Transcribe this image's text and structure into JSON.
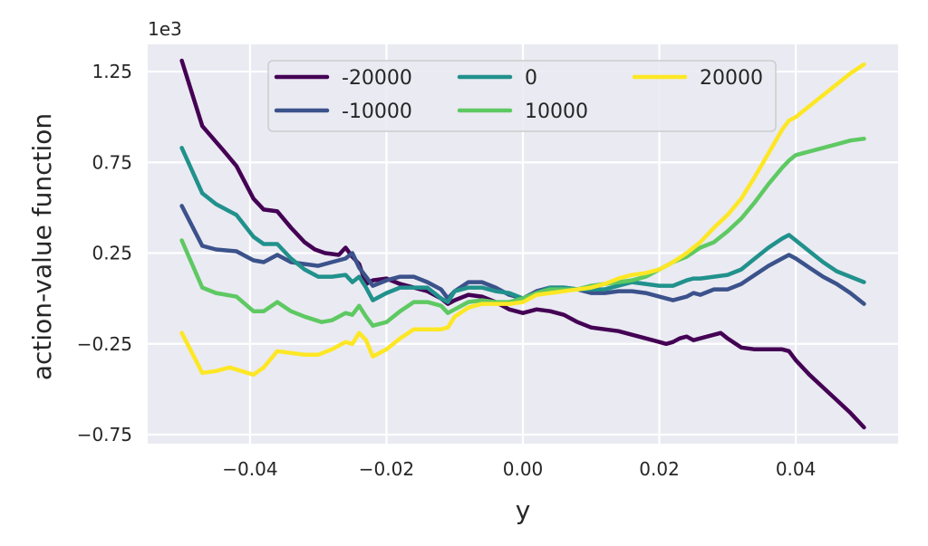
{
  "chart_data": {
    "type": "line",
    "xlabel": "y",
    "ylabel": "action-value function",
    "y_offset_label": "1e3",
    "xlim": [
      -0.055,
      0.055
    ],
    "ylim": [
      -0.8,
      1.4
    ],
    "x_ticks": [
      -0.04,
      -0.02,
      0.0,
      0.02,
      0.04
    ],
    "x_tick_labels": [
      "−0.04",
      "−0.02",
      "0.00",
      "0.02",
      "0.04"
    ],
    "y_ticks": [
      -0.75,
      -0.25,
      0.25,
      0.75,
      1.25
    ],
    "y_tick_labels": [
      "−0.75",
      "−0.25",
      "0.25",
      "0.75",
      "1.25"
    ],
    "grid": true,
    "legend_position": "upper-center",
    "background": "#eaeaf2",
    "series": [
      {
        "name": "-20000",
        "color": "#440154",
        "x": [
          -0.05,
          -0.047,
          -0.044,
          -0.042,
          -0.0395,
          -0.038,
          -0.036,
          -0.034,
          -0.032,
          -0.0305,
          -0.029,
          -0.027,
          -0.026,
          -0.025,
          -0.024,
          -0.023,
          -0.022,
          -0.02,
          -0.018,
          -0.016,
          -0.014,
          -0.012,
          -0.011,
          -0.01,
          -0.008,
          -0.006,
          -0.004,
          -0.002,
          0.0,
          0.002,
          0.004,
          0.006,
          0.008,
          0.01,
          0.012,
          0.014,
          0.016,
          0.018,
          0.02,
          0.021,
          0.022,
          0.023,
          0.024,
          0.025,
          0.026,
          0.028,
          0.029,
          0.03,
          0.032,
          0.034,
          0.036,
          0.038,
          0.039,
          0.04,
          0.042,
          0.044,
          0.046,
          0.048,
          0.05
        ],
        "values": [
          1.31,
          0.95,
          0.82,
          0.73,
          0.55,
          0.49,
          0.48,
          0.39,
          0.31,
          0.27,
          0.25,
          0.24,
          0.28,
          0.23,
          0.19,
          0.08,
          0.1,
          0.11,
          0.08,
          0.06,
          0.04,
          0.0,
          -0.03,
          -0.01,
          0.02,
          0.01,
          -0.02,
          -0.06,
          -0.08,
          -0.06,
          -0.07,
          -0.09,
          -0.13,
          -0.16,
          -0.17,
          -0.18,
          -0.2,
          -0.22,
          -0.24,
          -0.25,
          -0.24,
          -0.22,
          -0.21,
          -0.23,
          -0.22,
          -0.2,
          -0.19,
          -0.22,
          -0.27,
          -0.28,
          -0.28,
          -0.28,
          -0.29,
          -0.34,
          -0.42,
          -0.49,
          -0.56,
          -0.63,
          -0.71
        ]
      },
      {
        "name": "-10000",
        "color": "#3b528b",
        "x": [
          -0.05,
          -0.047,
          -0.045,
          -0.042,
          -0.0395,
          -0.038,
          -0.036,
          -0.034,
          -0.032,
          -0.03,
          -0.028,
          -0.026,
          -0.025,
          -0.024,
          -0.023,
          -0.022,
          -0.02,
          -0.018,
          -0.016,
          -0.014,
          -0.012,
          -0.011,
          -0.01,
          -0.008,
          -0.006,
          -0.004,
          -0.002,
          0.0,
          0.002,
          0.004,
          0.006,
          0.008,
          0.01,
          0.012,
          0.014,
          0.016,
          0.018,
          0.02,
          0.022,
          0.024,
          0.025,
          0.026,
          0.028,
          0.03,
          0.032,
          0.034,
          0.036,
          0.038,
          0.039,
          0.04,
          0.042,
          0.044,
          0.046,
          0.048,
          0.05
        ],
        "values": [
          0.51,
          0.29,
          0.27,
          0.26,
          0.21,
          0.2,
          0.24,
          0.2,
          0.19,
          0.18,
          0.2,
          0.22,
          0.25,
          0.17,
          0.12,
          0.07,
          0.1,
          0.12,
          0.12,
          0.09,
          0.05,
          0.0,
          0.04,
          0.09,
          0.09,
          0.06,
          0.02,
          0.0,
          0.04,
          0.06,
          0.06,
          0.05,
          0.03,
          0.03,
          0.04,
          0.04,
          0.03,
          0.01,
          -0.01,
          0.01,
          0.03,
          0.02,
          0.05,
          0.05,
          0.08,
          0.13,
          0.18,
          0.22,
          0.24,
          0.22,
          0.17,
          0.12,
          0.08,
          0.03,
          -0.03
        ]
      },
      {
        "name": "0",
        "color": "#21918c",
        "x": [
          -0.05,
          -0.047,
          -0.045,
          -0.042,
          -0.0395,
          -0.038,
          -0.036,
          -0.034,
          -0.032,
          -0.03,
          -0.028,
          -0.026,
          -0.025,
          -0.024,
          -0.023,
          -0.022,
          -0.02,
          -0.018,
          -0.016,
          -0.014,
          -0.012,
          -0.011,
          -0.01,
          -0.008,
          -0.006,
          -0.004,
          -0.002,
          0.0,
          0.002,
          0.004,
          0.006,
          0.008,
          0.01,
          0.012,
          0.014,
          0.016,
          0.018,
          0.02,
          0.022,
          0.024,
          0.025,
          0.026,
          0.028,
          0.03,
          0.032,
          0.034,
          0.036,
          0.038,
          0.039,
          0.04,
          0.042,
          0.044,
          0.046,
          0.048,
          0.05
        ],
        "values": [
          0.83,
          0.58,
          0.52,
          0.46,
          0.34,
          0.3,
          0.3,
          0.22,
          0.16,
          0.12,
          0.12,
          0.13,
          0.09,
          0.12,
          0.06,
          -0.01,
          0.03,
          0.06,
          0.06,
          0.06,
          0.0,
          -0.02,
          0.04,
          0.06,
          0.06,
          0.04,
          0.03,
          0.0,
          0.03,
          0.06,
          0.06,
          0.05,
          0.05,
          0.05,
          0.07,
          0.09,
          0.08,
          0.07,
          0.07,
          0.1,
          0.11,
          0.11,
          0.12,
          0.13,
          0.16,
          0.22,
          0.28,
          0.33,
          0.35,
          0.32,
          0.26,
          0.2,
          0.15,
          0.12,
          0.09
        ]
      },
      {
        "name": "10000",
        "color": "#5ec962",
        "x": [
          -0.05,
          -0.047,
          -0.045,
          -0.042,
          -0.0395,
          -0.038,
          -0.036,
          -0.034,
          -0.032,
          -0.0295,
          -0.028,
          -0.026,
          -0.025,
          -0.024,
          -0.023,
          -0.022,
          -0.02,
          -0.018,
          -0.016,
          -0.014,
          -0.012,
          -0.011,
          -0.01,
          -0.008,
          -0.006,
          -0.004,
          -0.002,
          0.0,
          0.002,
          0.004,
          0.006,
          0.008,
          0.01,
          0.012,
          0.014,
          0.016,
          0.018,
          0.02,
          0.022,
          0.024,
          0.026,
          0.028,
          0.03,
          0.032,
          0.034,
          0.036,
          0.038,
          0.039,
          0.04,
          0.042,
          0.044,
          0.046,
          0.048,
          0.05
        ],
        "values": [
          0.32,
          0.06,
          0.03,
          0.01,
          -0.07,
          -0.07,
          -0.02,
          -0.07,
          -0.1,
          -0.13,
          -0.12,
          -0.08,
          -0.09,
          -0.04,
          -0.1,
          -0.15,
          -0.13,
          -0.07,
          -0.02,
          -0.02,
          -0.04,
          -0.08,
          -0.06,
          -0.02,
          -0.01,
          -0.02,
          -0.02,
          0.0,
          0.03,
          0.05,
          0.05,
          0.05,
          0.07,
          0.08,
          0.09,
          0.1,
          0.12,
          0.16,
          0.2,
          0.23,
          0.28,
          0.31,
          0.37,
          0.44,
          0.53,
          0.63,
          0.72,
          0.76,
          0.79,
          0.81,
          0.83,
          0.85,
          0.87,
          0.88
        ]
      },
      {
        "name": "20000",
        "color": "#fde725",
        "x": [
          -0.05,
          -0.047,
          -0.045,
          -0.043,
          -0.0395,
          -0.038,
          -0.036,
          -0.034,
          -0.032,
          -0.03,
          -0.028,
          -0.026,
          -0.025,
          -0.024,
          -0.023,
          -0.022,
          -0.02,
          -0.018,
          -0.016,
          -0.014,
          -0.012,
          -0.011,
          -0.01,
          -0.008,
          -0.006,
          -0.004,
          -0.002,
          0.0,
          0.002,
          0.004,
          0.006,
          0.008,
          0.01,
          0.012,
          0.014,
          0.016,
          0.018,
          0.02,
          0.022,
          0.024,
          0.026,
          0.028,
          0.03,
          0.032,
          0.034,
          0.036,
          0.038,
          0.039,
          0.04,
          0.042,
          0.044,
          0.046,
          0.048,
          0.05
        ],
        "values": [
          -0.19,
          -0.41,
          -0.4,
          -0.38,
          -0.42,
          -0.38,
          -0.29,
          -0.3,
          -0.31,
          -0.31,
          -0.28,
          -0.24,
          -0.25,
          -0.19,
          -0.23,
          -0.32,
          -0.28,
          -0.22,
          -0.17,
          -0.17,
          -0.17,
          -0.16,
          -0.1,
          -0.05,
          -0.03,
          -0.03,
          -0.03,
          -0.02,
          0.02,
          0.03,
          0.04,
          0.05,
          0.06,
          0.08,
          0.11,
          0.13,
          0.14,
          0.16,
          0.2,
          0.25,
          0.31,
          0.39,
          0.46,
          0.55,
          0.67,
          0.8,
          0.93,
          0.98,
          1.0,
          1.06,
          1.12,
          1.18,
          1.24,
          1.29
        ]
      }
    ]
  }
}
